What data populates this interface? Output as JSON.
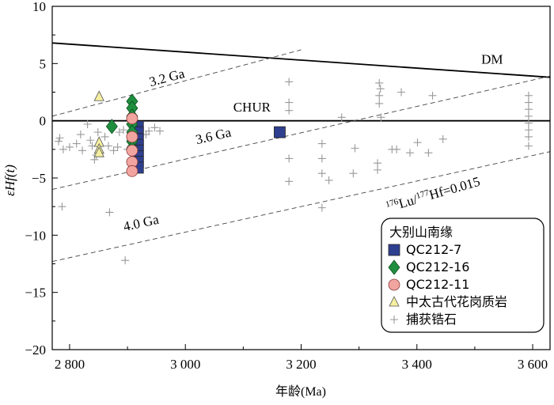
{
  "chart_data": {
    "type": "scatter",
    "xlabel": "年龄(Ma)",
    "ylabel": "εHf(t)",
    "xlim": [
      2770,
      3630
    ],
    "ylim": [
      -20,
      10
    ],
    "xticks": [
      2800,
      3000,
      3200,
      3400,
      3600
    ],
    "xtick_labels": [
      "2 800",
      "3 000",
      "3 200",
      "3 400",
      "3 600"
    ],
    "yticks": [
      -20,
      -15,
      -10,
      -5,
      0,
      5,
      10
    ],
    "ytick_labels": [
      "−20",
      "−15",
      "−10",
      "−5",
      "0",
      "5",
      "10"
    ],
    "grid": false,
    "legend_title": "大别山南缘",
    "legend_position": "bottom-right",
    "reference_lines": [
      {
        "name": "DM",
        "label": "DM",
        "style": "solid",
        "points": [
          [
            2770,
            6.8
          ],
          [
            3630,
            3.8
          ]
        ]
      },
      {
        "name": "CHUR",
        "label": "CHUR",
        "style": "solid",
        "points": [
          [
            2770,
            0
          ],
          [
            3630,
            0
          ]
        ]
      },
      {
        "name": "3.2 Ga",
        "label": "3.2 Ga",
        "style": "dashed",
        "points": [
          [
            2770,
            0.4
          ],
          [
            3200,
            6.2
          ]
        ]
      },
      {
        "name": "3.6 Ga",
        "label": "3.6 Ga",
        "style": "dashed",
        "points": [
          [
            2770,
            -6.0
          ],
          [
            3630,
            3.9
          ]
        ]
      },
      {
        "name": "4.0 Ga",
        "label": "4.0 Ga",
        "style": "dashed",
        "points": [
          [
            2770,
            -12.3
          ],
          [
            3630,
            -2.7
          ]
        ]
      }
    ],
    "line_annotation": {
      "sup1": "176",
      "base1": "Lu/",
      "sup2": "177",
      "base2": "Hf=0.015",
      "x": 3430,
      "y": -6.8,
      "angle_deg": -16
    },
    "series": [
      {
        "name": "QC212-7",
        "marker": "square",
        "color": "#2f3f8f",
        "points": [
          [
            2918,
            -0.5
          ],
          [
            2918,
            -1.0
          ],
          [
            2918,
            -1.6
          ],
          [
            2918,
            -2.1
          ],
          [
            2918,
            -2.6
          ],
          [
            2918,
            -3.1
          ],
          [
            2918,
            -3.6
          ],
          [
            2918,
            -4.1
          ],
          [
            3163,
            -1.0
          ]
        ]
      },
      {
        "name": "QC212-16",
        "marker": "diamond",
        "color": "#1f8f3f",
        "points": [
          [
            2908,
            1.7
          ],
          [
            2908,
            1.1
          ],
          [
            2908,
            0.4
          ],
          [
            2908,
            -0.3
          ],
          [
            2908,
            -1.0
          ],
          [
            2908,
            -1.8
          ],
          [
            2908,
            -2.4
          ],
          [
            2873,
            -0.5
          ]
        ]
      },
      {
        "name": "QC212-11",
        "marker": "circle",
        "color": "#f2a5a0",
        "points": [
          [
            2908,
            0.2
          ],
          [
            2908,
            -1.4
          ],
          [
            2908,
            -2.6
          ],
          [
            2908,
            -3.6
          ],
          [
            2908,
            -4.4
          ]
        ]
      },
      {
        "name": "中太古代花岗质岩",
        "marker": "triangle",
        "color": "#f5efa0",
        "points": [
          [
            2851,
            2.1
          ],
          [
            2851,
            -1.9
          ],
          [
            2851,
            -2.5
          ],
          [
            2851,
            -2.8
          ]
        ]
      },
      {
        "name": "捕获锆石",
        "marker": "plus",
        "color": "#999999",
        "points": [
          [
            2783,
            -1.5
          ],
          [
            2781,
            -1.8
          ],
          [
            2789,
            -2.5
          ],
          [
            2787,
            -7.5
          ],
          [
            2800,
            -2.3
          ],
          [
            2812,
            -2.0
          ],
          [
            2819,
            -1.2
          ],
          [
            2822,
            -2.6
          ],
          [
            2831,
            -0.3
          ],
          [
            2836,
            -1.7
          ],
          [
            2839,
            -2.2
          ],
          [
            2843,
            -3.4
          ],
          [
            2846,
            -3.0
          ],
          [
            2849,
            -1.0
          ],
          [
            2861,
            -1.4
          ],
          [
            2867,
            -2.2
          ],
          [
            2869,
            -8.0
          ],
          [
            2876,
            -2.6
          ],
          [
            2883,
            -2.3
          ],
          [
            2886,
            -1.0
          ],
          [
            2893,
            -0.8
          ],
          [
            2896,
            -12.2
          ],
          [
            2900,
            -2.5
          ],
          [
            2932,
            -1.2
          ],
          [
            2937,
            -0.9
          ],
          [
            2947,
            -0.6
          ],
          [
            2956,
            -0.9
          ],
          [
            3179,
            3.4
          ],
          [
            3179,
            1.6
          ],
          [
            3179,
            0.9
          ],
          [
            3179,
            -3.3
          ],
          [
            3179,
            -5.3
          ],
          [
            3236,
            -2.0
          ],
          [
            3236,
            -3.3
          ],
          [
            3236,
            -4.6
          ],
          [
            3236,
            -7.6
          ],
          [
            3248,
            -5.2
          ],
          [
            3270,
            0.3
          ],
          [
            3293,
            -2.4
          ],
          [
            3290,
            -4.6
          ],
          [
            3335,
            3.3
          ],
          [
            3337,
            2.8
          ],
          [
            3335,
            2.2
          ],
          [
            3335,
            1.5
          ],
          [
            3338,
            0.3
          ],
          [
            3332,
            -3.7
          ],
          [
            3332,
            -4.3
          ],
          [
            3357,
            -2.5
          ],
          [
            3365,
            -2.5
          ],
          [
            3373,
            2.5
          ],
          [
            3388,
            -2.8
          ],
          [
            3401,
            -1.9
          ],
          [
            3420,
            -2.8
          ],
          [
            3427,
            2.2
          ],
          [
            3445,
            -1.6
          ],
          [
            3593,
            2.2
          ],
          [
            3593,
            1.6
          ],
          [
            3593,
            1.0
          ],
          [
            3593,
            0.4
          ],
          [
            3593,
            -0.2
          ],
          [
            3593,
            -0.8
          ],
          [
            3593,
            -1.4
          ],
          [
            3593,
            -2.2
          ]
        ]
      }
    ]
  }
}
